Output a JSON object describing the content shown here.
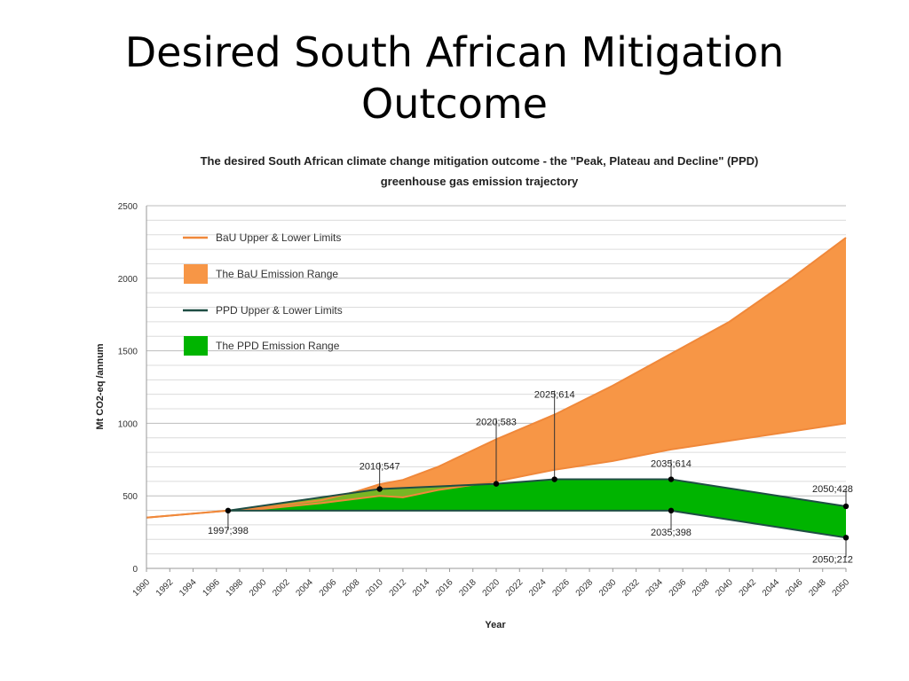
{
  "slide": {
    "title_line1": "Desired South African Mitigation",
    "title_line2": "Outcome"
  },
  "chart_data": {
    "type": "area",
    "title_line1": "The desired South African climate change mitigation outcome - the \"Peak, Plateau and Decline\" (PPD)",
    "title_line2": "greenhouse gas emission trajectory",
    "xlabel": "Year",
    "ylabel": "Mt CO2-eq /annum",
    "xlim": [
      1990,
      2050
    ],
    "ylim": [
      0,
      2500
    ],
    "y_ticks": [
      "0",
      "500",
      "1000",
      "1500",
      "2000",
      "2500"
    ],
    "x_ticks": [
      "1990",
      "1992",
      "1994",
      "1996",
      "1998",
      "2000",
      "2002",
      "2004",
      "2006",
      "2008",
      "2010",
      "2012",
      "2014",
      "2016",
      "2018",
      "2020",
      "2022",
      "2024",
      "2026",
      "2028",
      "2030",
      "2032",
      "2034",
      "2036",
      "2038",
      "2040",
      "2042",
      "2044",
      "2046",
      "2048",
      "2050"
    ],
    "grid": true,
    "legend_position": "top-left",
    "legend": [
      {
        "label": "BaU Upper & Lower Limits",
        "kind": "line",
        "color": "#f0883a"
      },
      {
        "label": "The BaU Emission Range",
        "kind": "fill",
        "color": "#f79646"
      },
      {
        "label": "PPD Upper & Lower Limits",
        "kind": "line",
        "color": "#1f4e44"
      },
      {
        "label": "The PPD Emission Range",
        "kind": "fill",
        "color": "#00b400"
      }
    ],
    "series": [
      {
        "name": "BaU Upper Limit",
        "x": [
          1990,
          1997,
          2000,
          2005,
          2008,
          2010,
          2012,
          2015,
          2020,
          2025,
          2030,
          2035,
          2040,
          2045,
          2050
        ],
        "y": [
          350,
          398,
          420,
          470,
          530,
          580,
          610,
          700,
          890,
          1060,
          1260,
          1480,
          1700,
          1980,
          2280
        ]
      },
      {
        "name": "BaU Lower Limit",
        "x": [
          1990,
          1997,
          2000,
          2005,
          2010,
          2012,
          2015,
          2020,
          2025,
          2030,
          2035,
          2040,
          2045,
          2050
        ],
        "y": [
          350,
          398,
          410,
          450,
          500,
          490,
          540,
          600,
          680,
          740,
          820,
          880,
          940,
          1000
        ]
      },
      {
        "name": "PPD Upper Limit",
        "x": [
          1997,
          2010,
          2020,
          2025,
          2035,
          2050
        ],
        "y": [
          398,
          547,
          583,
          614,
          614,
          428
        ]
      },
      {
        "name": "PPD Lower Limit",
        "x": [
          1997,
          2035,
          2050
        ],
        "y": [
          398,
          398,
          212
        ]
      }
    ],
    "annotations": [
      {
        "label": "1997;398",
        "x": 1997,
        "y": 398
      },
      {
        "label": "2010;547",
        "x": 2010,
        "y": 547
      },
      {
        "label": "2020;583",
        "x": 2020,
        "y": 583
      },
      {
        "label": "2025;614",
        "x": 2025,
        "y": 614
      },
      {
        "label": "2035;614",
        "x": 2035,
        "y": 614
      },
      {
        "label": "2035;398",
        "x": 2035,
        "y": 398
      },
      {
        "label": "2050;428",
        "x": 2050,
        "y": 428
      },
      {
        "label": "2050;212",
        "x": 2050,
        "y": 212
      }
    ]
  }
}
